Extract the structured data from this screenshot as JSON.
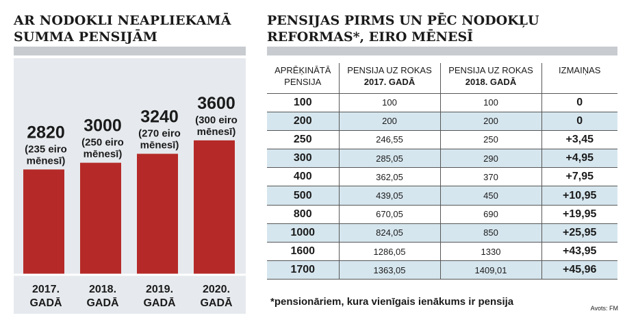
{
  "left": {
    "title_line1": "AR NODOKLI NEAPLIEKAMĀ",
    "title_line2": "SUMMA PENSIJĀM",
    "colors": {
      "bar": "#b52a28",
      "panel": "#e6eaee",
      "rule": "#c8ccd0"
    }
  },
  "chart_data": {
    "type": "bar",
    "title": "AR NODOKLI NEAPLIEKAMĀ SUMMA PENSIJĀM",
    "categories": [
      [
        "2017.",
        "GADĀ"
      ],
      [
        "2018.",
        "GADĀ"
      ],
      [
        "2019.",
        "GADĀ"
      ],
      [
        "2020.",
        "GADĀ"
      ]
    ],
    "values": [
      2820,
      3000,
      3240,
      3600
    ],
    "value_labels": [
      "2820",
      "3000",
      "3240",
      "3600"
    ],
    "sub_labels": [
      [
        "(235 eiro",
        "mēnesī)"
      ],
      [
        "(250 eiro",
        "mēnesī)"
      ],
      [
        "(270 eiro",
        "mēnesī)"
      ],
      [
        "(300 eiro",
        "mēnesī)"
      ]
    ],
    "ylim": [
      0,
      5800
    ],
    "grid": false,
    "xlabel": "",
    "ylabel": ""
  },
  "right": {
    "title_line1": "PENSIJAS PIRMS UN PĒC NODOKĻU",
    "title_line2": "REFORMAS*, EIRO MĒNESĪ",
    "columns": [
      {
        "line1": "APRĒĶINĀTĀ",
        "line2": "PENSIJA",
        "bold2": false
      },
      {
        "line1": "PENSIJA UZ ROKAS",
        "line2": "2017. GADĀ",
        "bold2": true
      },
      {
        "line1": "PENSIJA UZ ROKAS",
        "line2": "2018. GADĀ",
        "bold2": true
      },
      {
        "line1": "IZMAIŅAS",
        "line2": "",
        "bold2": false
      }
    ],
    "rows": [
      {
        "base": "100",
        "y2017": "100",
        "y2018": "100",
        "change": "0"
      },
      {
        "base": "200",
        "y2017": "200",
        "y2018": "200",
        "change": "0"
      },
      {
        "base": "250",
        "y2017": "246,55",
        "y2018": "250",
        "change": "+3,45"
      },
      {
        "base": "300",
        "y2017": "285,05",
        "y2018": "290",
        "change": "+4,95"
      },
      {
        "base": "400",
        "y2017": "362,05",
        "y2018": "370",
        "change": "+7,95"
      },
      {
        "base": "500",
        "y2017": "439,05",
        "y2018": "450",
        "change": "+10,95"
      },
      {
        "base": "800",
        "y2017": "670,05",
        "y2018": "690",
        "change": "+19,95"
      },
      {
        "base": "1000",
        "y2017": "824,05",
        "y2018": "850",
        "change": "+25,95"
      },
      {
        "base": "1600",
        "y2017": "1286,05",
        "y2018": "1330",
        "change": "+43,95"
      },
      {
        "base": "1700",
        "y2017": "1363,05",
        "y2018": "1409,01",
        "change": "+45,96"
      }
    ],
    "colors": {
      "alt_row": "#d6e6ee"
    },
    "footnote": "*pensionāriem, kura vienīgais ienākums ir pensija",
    "source": "Avots: FM"
  }
}
